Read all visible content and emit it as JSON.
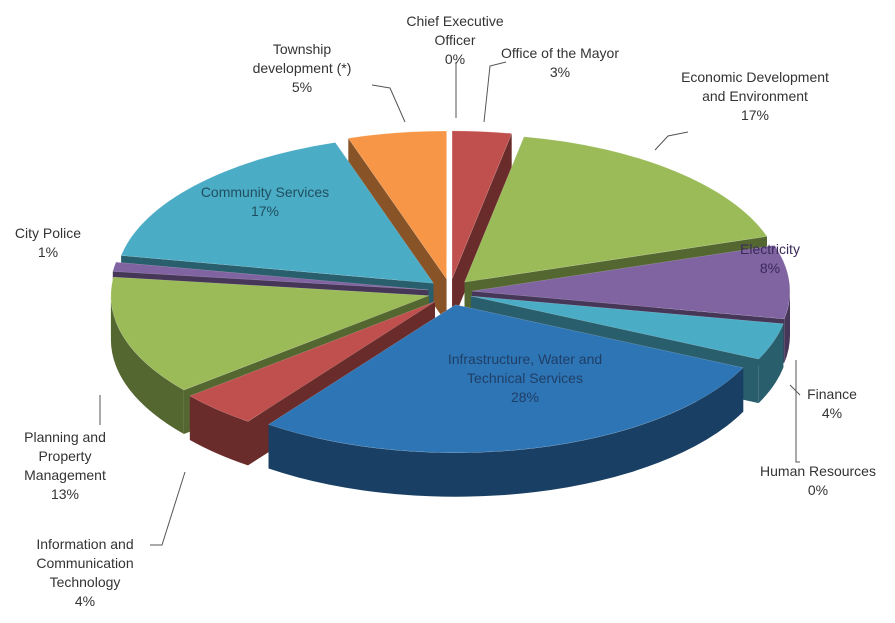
{
  "chart_data": {
    "type": "pie3d",
    "categories": [
      "Chief Executive Officer",
      "Office of the  Mayor",
      "Economic Development  and Environment",
      "Electricity",
      "Finance",
      "Human Resources",
      "Infrastructure, Water and Technical Services",
      "Information and Communication Technology",
      "Planning and Property Management",
      "City Police",
      "Community Services",
      "Township development (*)"
    ],
    "values": [
      0,
      3,
      17,
      8,
      4,
      0,
      28,
      4,
      13,
      1,
      17,
      5
    ],
    "value_labels": [
      "0%",
      "3%",
      "17%",
      "8%",
      "4%",
      "0%",
      "28%",
      "4%",
      "13%",
      "1%",
      "17%",
      "5%"
    ],
    "colors": [
      "#4f81bd",
      "#c0504d",
      "#9bbb59",
      "#8064a2",
      "#4bacc6",
      "#f79646",
      "#2e75b6",
      "#c0504d",
      "#9bbb59",
      "#8064a2",
      "#4bacc6",
      "#f79646"
    ]
  }
}
